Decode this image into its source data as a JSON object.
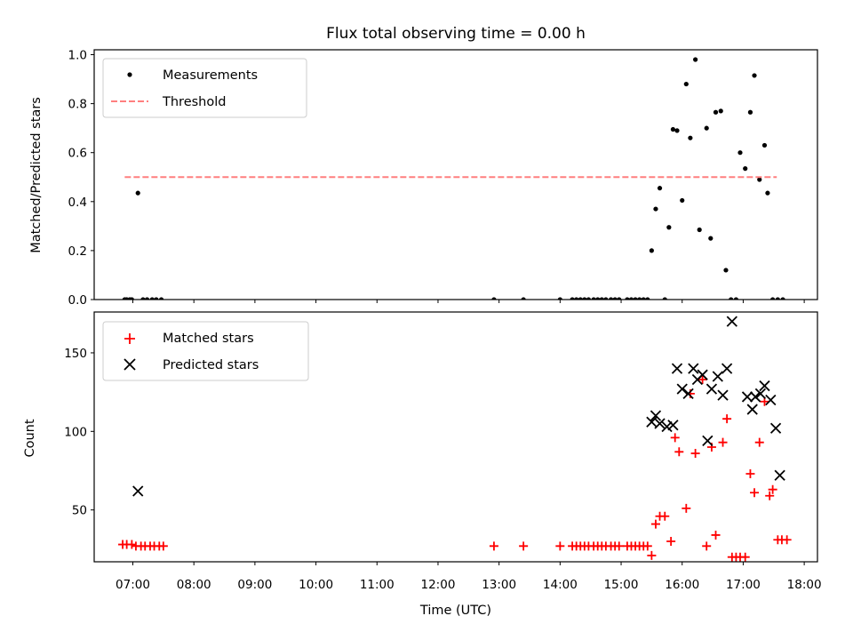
{
  "chart_data": [
    {
      "type": "scatter",
      "title": "Flux total observing time = 0.00 h",
      "xlabel": "",
      "ylabel": "Matched/Predicted stars",
      "xlim": [
        "06:22",
        "18:13"
      ],
      "ylim": [
        0,
        1.02
      ],
      "yticks": [
        0.0,
        0.2,
        0.4,
        0.6,
        0.8,
        1.0
      ],
      "ytick_labels": [
        "0.0",
        "0.2",
        "0.4",
        "0.6",
        "0.8",
        "1.0"
      ],
      "grid": false,
      "legend_position": "top-left",
      "series": [
        {
          "name": "Measurements",
          "kind": "scatter",
          "marker": "dot",
          "color": "#000000",
          "x": [
            "06:52",
            "06:54",
            "06:57",
            "06:59",
            "07:05",
            "07:10",
            "07:14",
            "07:19",
            "07:23",
            "07:28",
            "12:55",
            "13:24",
            "14:00",
            "14:12",
            "14:16",
            "14:20",
            "14:24",
            "14:28",
            "14:33",
            "14:37",
            "14:41",
            "14:45",
            "14:50",
            "14:54",
            "14:58",
            "15:06",
            "15:10",
            "15:14",
            "15:18",
            "15:22",
            "15:26",
            "15:30",
            "15:34",
            "15:38",
            "15:43",
            "15:47",
            "15:51",
            "15:55",
            "16:00",
            "16:04",
            "16:08",
            "16:13",
            "16:17",
            "16:24",
            "16:28",
            "16:33",
            "16:38",
            "16:43",
            "16:48",
            "16:53",
            "16:57",
            "17:02",
            "17:07",
            "17:11",
            "17:16",
            "17:21",
            "17:24",
            "17:29",
            "17:34",
            "17:39"
          ],
          "y": [
            0,
            0,
            0,
            0,
            0.435,
            0,
            0,
            0,
            0,
            0,
            0,
            0,
            0,
            0,
            0,
            0,
            0,
            0,
            0,
            0,
            0,
            0,
            0,
            0,
            0,
            0,
            0,
            0,
            0,
            0,
            0,
            0.2,
            0.37,
            0.455,
            0,
            0.295,
            0.695,
            0.69,
            0.405,
            0.88,
            0.66,
            0.98,
            0.285,
            0.7,
            0.25,
            0.765,
            0.77,
            0.12,
            0,
            0,
            0.6,
            0.535,
            0.765,
            0.915,
            0.49,
            0.63,
            0.435,
            0,
            0,
            0
          ]
        },
        {
          "name": "Threshold",
          "kind": "line",
          "style": "dashed",
          "color": "#ff7f7f",
          "x": [
            "06:52",
            "17:33"
          ],
          "y": [
            0.5,
            0.5
          ]
        }
      ]
    },
    {
      "type": "scatter",
      "title": "",
      "xlabel": "Time (UTC)",
      "ylabel": "Count",
      "xlim": [
        "06:22",
        "18:13"
      ],
      "ylim": [
        17,
        176
      ],
      "yticks": [
        50,
        100,
        150
      ],
      "ytick_labels": [
        "50",
        "100",
        "150"
      ],
      "xticks": [
        "07:00",
        "08:00",
        "09:00",
        "10:00",
        "11:00",
        "12:00",
        "13:00",
        "14:00",
        "15:00",
        "16:00",
        "17:00",
        "18:00"
      ],
      "grid": false,
      "legend_position": "top-left",
      "series": [
        {
          "name": "Matched stars",
          "kind": "scatter",
          "marker": "plus",
          "color": "#ff0000",
          "x": [
            "06:50",
            "06:54",
            "06:59",
            "07:03",
            "07:08",
            "07:12",
            "07:17",
            "07:21",
            "07:26",
            "07:30",
            "12:55",
            "13:24",
            "14:00",
            "14:12",
            "14:16",
            "14:20",
            "14:24",
            "14:28",
            "14:33",
            "14:37",
            "14:41",
            "14:45",
            "14:50",
            "14:54",
            "14:58",
            "15:06",
            "15:10",
            "15:14",
            "15:18",
            "15:22",
            "15:26",
            "15:30",
            "15:34",
            "15:38",
            "15:43",
            "15:49",
            "15:53",
            "15:57",
            "16:04",
            "16:08",
            "16:13",
            "16:20",
            "16:24",
            "16:29",
            "16:33",
            "16:40",
            "16:44",
            "16:49",
            "16:53",
            "16:57",
            "17:02",
            "17:07",
            "17:11",
            "17:16",
            "17:21",
            "17:26",
            "17:29",
            "17:34",
            "17:38",
            "17:43"
          ],
          "y": [
            28,
            28,
            28,
            27,
            27,
            27,
            27,
            27,
            27,
            27,
            27,
            27,
            27,
            27,
            27,
            27,
            27,
            27,
            27,
            27,
            27,
            27,
            27,
            27,
            27,
            27,
            27,
            27,
            27,
            27,
            27,
            21,
            41,
            46,
            46,
            30,
            96,
            87,
            51,
            124,
            86,
            133,
            27,
            90,
            34,
            93,
            108,
            20,
            20,
            20,
            20,
            73,
            61,
            93,
            119,
            59,
            63,
            31,
            31,
            31
          ]
        },
        {
          "name": "Predicted stars",
          "kind": "scatter",
          "marker": "x",
          "color": "#000000",
          "x": [
            "07:05",
            "15:30",
            "15:34",
            "15:38",
            "15:45",
            "15:51",
            "15:55",
            "16:00",
            "16:06",
            "16:11",
            "16:15",
            "16:20",
            "16:25",
            "16:29",
            "16:35",
            "16:40",
            "16:44",
            "16:49",
            "17:04",
            "17:09",
            "17:12",
            "17:17",
            "17:21",
            "17:27",
            "17:32",
            "17:36"
          ],
          "y": [
            62,
            106,
            110,
            105,
            103,
            104,
            140,
            127,
            124,
            140,
            133,
            136,
            94,
            127,
            135,
            123,
            140,
            170,
            122,
            114,
            122,
            124,
            129,
            120,
            102,
            72
          ]
        }
      ]
    }
  ]
}
